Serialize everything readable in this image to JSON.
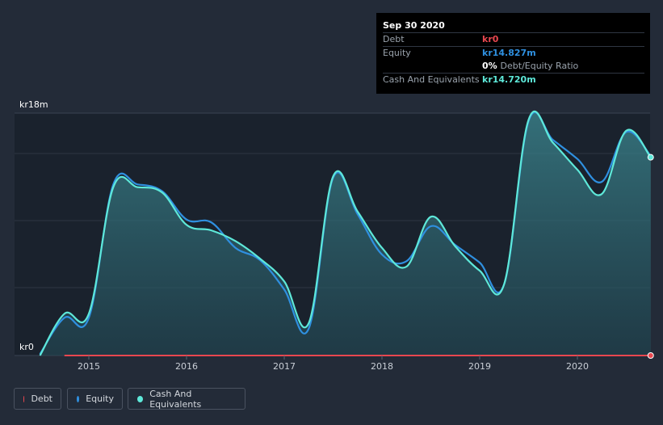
{
  "chart_data": {
    "type": "area",
    "currency": "kr",
    "x_ticks": [
      "2015",
      "2016",
      "2017",
      "2018",
      "2019",
      "2020"
    ],
    "y_axis": {
      "top_label": "kr18m",
      "bottom_label": "kr0",
      "ylim": [
        0,
        18
      ]
    },
    "series": [
      {
        "name": "Debt",
        "color": "#e8474f",
        "points": [
          [
            2014.75,
            0
          ],
          [
            2020.75,
            0
          ]
        ]
      },
      {
        "name": "Equity",
        "color": "#2f90e0",
        "points": [
          [
            2014.5,
            0.1
          ],
          [
            2014.75,
            2.8
          ],
          [
            2015.0,
            2.8
          ],
          [
            2015.25,
            12.7
          ],
          [
            2015.5,
            12.7
          ],
          [
            2015.75,
            12.2
          ],
          [
            2016.0,
            10.1
          ],
          [
            2016.25,
            9.9
          ],
          [
            2016.5,
            8.0
          ],
          [
            2016.75,
            7.1
          ],
          [
            2017.0,
            4.9
          ],
          [
            2017.25,
            2.0
          ],
          [
            2017.5,
            13.2
          ],
          [
            2017.75,
            10.5
          ],
          [
            2018.0,
            7.5
          ],
          [
            2018.25,
            7.0
          ],
          [
            2018.5,
            9.6
          ],
          [
            2018.75,
            8.2
          ],
          [
            2019.0,
            6.9
          ],
          [
            2019.25,
            5.3
          ],
          [
            2019.5,
            17.4
          ],
          [
            2019.75,
            16.0
          ],
          [
            2020.0,
            14.6
          ],
          [
            2020.25,
            12.9
          ],
          [
            2020.5,
            16.6
          ],
          [
            2020.75,
            14.827
          ]
        ]
      },
      {
        "name": "Cash And Equivalents",
        "color": "#5ee8d9",
        "points": [
          [
            2014.5,
            0.0
          ],
          [
            2014.75,
            3.1
          ],
          [
            2015.0,
            3.1
          ],
          [
            2015.25,
            12.5
          ],
          [
            2015.5,
            12.5
          ],
          [
            2015.75,
            12.1
          ],
          [
            2016.0,
            9.7
          ],
          [
            2016.25,
            9.3
          ],
          [
            2016.5,
            8.5
          ],
          [
            2016.75,
            7.2
          ],
          [
            2017.0,
            5.5
          ],
          [
            2017.25,
            2.4
          ],
          [
            2017.5,
            13.3
          ],
          [
            2017.75,
            10.7
          ],
          [
            2018.0,
            8.0
          ],
          [
            2018.25,
            6.6
          ],
          [
            2018.5,
            10.3
          ],
          [
            2018.75,
            8.1
          ],
          [
            2019.0,
            6.3
          ],
          [
            2019.25,
            5.3
          ],
          [
            2019.5,
            17.5
          ],
          [
            2019.75,
            15.8
          ],
          [
            2020.0,
            13.8
          ],
          [
            2020.25,
            12.0
          ],
          [
            2020.5,
            16.7
          ],
          [
            2020.75,
            14.72
          ]
        ]
      }
    ],
    "tooltip": {
      "date": "Sep 30 2020",
      "rows": [
        {
          "label": "Debt",
          "value": "kr0",
          "color": "#e8474f"
        },
        {
          "label": "Equity",
          "value": "kr14.827m",
          "color": "#2f90e0"
        },
        {
          "label": "",
          "value": "0%",
          "suffix": "Debt/Equity Ratio",
          "color": "#ffffff"
        },
        {
          "label": "Cash And Equivalents",
          "value": "kr14.720m",
          "color": "#5ee8d9"
        }
      ]
    },
    "legend": [
      {
        "name": "Debt",
        "color": "#e8474f"
      },
      {
        "name": "Equity",
        "color": "#2f90e0"
      },
      {
        "name": "Cash And Equivalents",
        "color": "#5ee8d9"
      }
    ]
  }
}
